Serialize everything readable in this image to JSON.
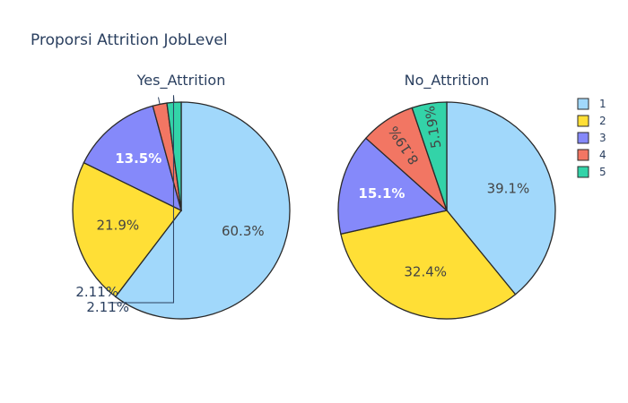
{
  "chart_data": {
    "type": "pie",
    "title": "Proporsi Attrition JobLevel",
    "legend_position": "top-right",
    "legend": [
      "1",
      "2",
      "3",
      "4",
      "5"
    ],
    "colors": [
      "#a1d8fb",
      "#ffdf36",
      "#8589fa",
      "#f27663",
      "#33d3a8"
    ],
    "pies": [
      {
        "name": "Yes_Attrition",
        "categories": [
          "1",
          "2",
          "3",
          "4",
          "5"
        ],
        "values": [
          60.3,
          21.9,
          13.5,
          2.11,
          2.11
        ],
        "labels": [
          "60.3%",
          "21.9%",
          "13.5%",
          "2.11%",
          "2.11%"
        ]
      },
      {
        "name": "No_Attrition",
        "categories": [
          "1",
          "2",
          "3",
          "4",
          "5"
        ],
        "values": [
          39.1,
          32.4,
          15.1,
          8.19,
          5.19
        ],
        "labels": [
          "39.1%",
          "32.4%",
          "15.1%",
          "8.19%",
          "5.19%"
        ]
      }
    ]
  }
}
